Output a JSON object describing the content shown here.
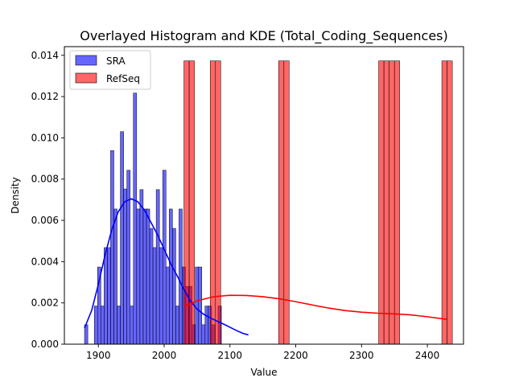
{
  "chart_data": {
    "type": "histogram",
    "title": "Overlayed Histogram and KDE (Total_Coding_Sequences)",
    "xlabel": "Value",
    "ylabel": "Density",
    "xlim": [
      1848.35,
      2454.95
    ],
    "ylim": [
      0,
      0.01442
    ],
    "xticks": [
      1900,
      2000,
      2100,
      2200,
      2300,
      2400
    ],
    "yticks": [
      0.0,
      0.002,
      0.004,
      0.006,
      0.008,
      0.01,
      0.012,
      0.014
    ],
    "ytick_labels": [
      "0.000",
      "0.002",
      "0.004",
      "0.006",
      "0.008",
      "0.010",
      "0.012",
      "0.014"
    ],
    "grid": false,
    "legend_position": "top-left",
    "series": [
      {
        "name": "SRA",
        "color": "#0000ff",
        "bin_start": 1879.0,
        "bin_width": 4.95,
        "densities": [
          0.00094,
          0,
          0,
          0.00185,
          0.00374,
          0.00185,
          0.00468,
          0.00468,
          0.00938,
          0.00655,
          0.00185,
          0.0103,
          0.00752,
          0.00843,
          0.00185,
          0.01217,
          0.00655,
          0.00749,
          0.00655,
          0.00655,
          0.00561,
          0.00468,
          0.00749,
          0.00468,
          0.00843,
          0.00374,
          0.00655,
          0.00561,
          0.00185,
          0.00655,
          0.00374,
          0.0028,
          0.0028,
          0.00094,
          0.00374,
          0.00374,
          0.00094,
          0.00185,
          0.00185,
          0.00094,
          0,
          0.00185
        ],
        "kde": {
          "x": [
            1879,
            1890,
            1900,
            1910,
            1920,
            1930,
            1940,
            1950,
            1960,
            1970,
            1980,
            1990,
            2000,
            2010,
            2020,
            2030,
            2040,
            2050,
            2060,
            2070,
            2080,
            2090,
            2100,
            2110,
            2120,
            2128
          ],
          "y": [
            0.00078,
            0.00165,
            0.0029,
            0.0043,
            0.0055,
            0.0064,
            0.0069,
            0.00705,
            0.0069,
            0.0065,
            0.0059,
            0.0053,
            0.0046,
            0.0039,
            0.0033,
            0.00265,
            0.0021,
            0.0017,
            0.00145,
            0.00128,
            0.00112,
            0.00098,
            0.00082,
            0.00066,
            0.00052,
            0.00045
          ]
        }
      },
      {
        "name": "RefSeq",
        "color": "#ff0000",
        "bin_start": 2030.0,
        "bin_width": 8.0,
        "densities": [
          0.01373,
          0.01373,
          0,
          0,
          0,
          0.01373,
          0.01373,
          0,
          0,
          0,
          0,
          0,
          0,
          0,
          0,
          0,
          0,
          0,
          0.01373,
          0.01373,
          0,
          0,
          0,
          0,
          0,
          0,
          0,
          0,
          0,
          0,
          0,
          0,
          0,
          0,
          0,
          0,
          0,
          0.01373,
          0.01373,
          0.01373,
          0.01373,
          0,
          0,
          0,
          0,
          0,
          0,
          0,
          0,
          0.01373,
          0.01373
        ],
        "kde": {
          "x": [
            2030,
            2050,
            2075,
            2100,
            2125,
            2150,
            2175,
            2200,
            2225,
            2250,
            2275,
            2300,
            2325,
            2350,
            2375,
            2400,
            2430
          ],
          "y": [
            0.00183,
            0.0021,
            0.0023,
            0.00237,
            0.00236,
            0.0023,
            0.0022,
            0.00206,
            0.0019,
            0.00175,
            0.00163,
            0.00155,
            0.0015,
            0.00147,
            0.00142,
            0.00133,
            0.0012
          ]
        }
      }
    ]
  }
}
